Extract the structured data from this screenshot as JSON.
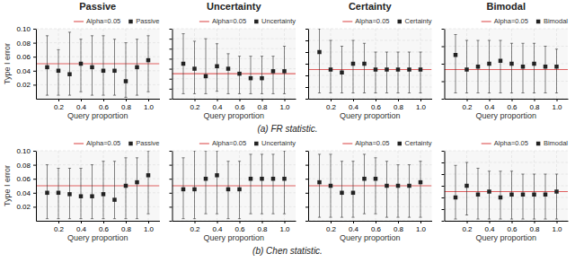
{
  "chart_data": [
    {
      "type": "scatter",
      "title": "Passive",
      "xlabel": "Query proportion",
      "ylabel": "Type I error",
      "x": [
        0.1,
        0.2,
        0.3,
        0.4,
        0.5,
        0.6,
        0.7,
        0.8,
        0.9,
        1.0
      ],
      "xlim": [
        0.0,
        1.1
      ],
      "xticks": [
        0.2,
        0.4,
        0.6,
        0.8,
        {
          "value": 1.0,
          "label": "1.0"
        }
      ],
      "ylim": [
        0.0,
        0.1
      ],
      "yticks": [
        0.02,
        0.04,
        0.06,
        0.08,
        {
          "value": 0.1,
          "label": "0.10"
        }
      ],
      "grid": true,
      "legend": "upper right",
      "reference_line": {
        "name": "Alpha=0.05",
        "value": 0.05,
        "color": "#e06060"
      },
      "series": [
        {
          "name": "Passive",
          "color": "#222222",
          "marker": "square",
          "values": [
            0.045,
            0.04,
            0.035,
            0.05,
            0.045,
            0.04,
            0.04,
            0.025,
            0.045,
            0.055
          ],
          "lo": [
            0.005,
            0.005,
            0.005,
            0.01,
            0.005,
            0.005,
            0.005,
            0.002,
            0.005,
            0.01
          ],
          "hi": [
            0.09,
            0.07,
            0.095,
            0.085,
            0.09,
            0.09,
            0.085,
            0.08,
            0.085,
            0.09
          ]
        }
      ]
    },
    {
      "type": "scatter",
      "title": "Uncertainty",
      "xlabel": "Query proportion",
      "x": [
        0.1,
        0.2,
        0.3,
        0.4,
        0.5,
        0.6,
        0.7,
        0.8,
        0.9,
        1.0
      ],
      "xlim": [
        0.0,
        1.1
      ],
      "xticks": [
        0.2,
        0.4,
        0.6,
        0.8,
        {
          "value": 1.0,
          "label": "1.0"
        }
      ],
      "ylim": [
        0.0,
        0.14
      ],
      "yticks": [
        0.0,
        0.02,
        0.04,
        0.06,
        0.08,
        0.1,
        0.12,
        0.14
      ],
      "tick_labels": "x",
      "grid": true,
      "legend": "upper right",
      "reference_line": {
        "name": "Alpha=0.05",
        "value": 0.05,
        "color": "#e06060"
      },
      "series": [
        {
          "name": "Uncertainty",
          "color": "#222222",
          "marker": "square",
          "values": [
            0.07,
            0.06,
            0.045,
            0.065,
            0.06,
            0.05,
            0.041,
            0.041,
            0.055,
            0.055
          ],
          "lo": [
            0.01,
            0.01,
            0.01,
            0.015,
            0.01,
            0.01,
            0.01,
            0.01,
            0.01,
            0.01
          ],
          "hi": [
            0.13,
            0.115,
            0.12,
            0.11,
            0.09,
            0.085,
            0.085,
            0.085,
            0.085,
            0.105
          ]
        }
      ]
    },
    {
      "type": "scatter",
      "title": "Certainty",
      "xlabel": "Query proportion",
      "x": [
        0.1,
        0.2,
        0.3,
        0.4,
        0.5,
        0.6,
        0.7,
        0.8,
        0.9,
        1.0
      ],
      "xlim": [
        0.0,
        1.1
      ],
      "xticks": [
        0.2,
        0.4,
        0.6,
        0.8,
        {
          "value": 1.0,
          "label": "1.0"
        }
      ],
      "ylim": [
        0.0,
        0.12
      ],
      "yticks": [
        0.0,
        0.02,
        0.04,
        0.06,
        0.08,
        0.1,
        0.12
      ],
      "tick_labels": "x",
      "grid": true,
      "legend": "upper right",
      "reference_line": {
        "name": "Alpha=0.05",
        "value": 0.05,
        "color": "#e06060"
      },
      "series": [
        {
          "name": "Certainty",
          "color": "#222222",
          "marker": "square",
          "values": [
            0.08,
            0.05,
            0.045,
            0.06,
            0.06,
            0.05,
            0.05,
            0.05,
            0.05,
            0.05
          ],
          "lo": [
            0.01,
            0.01,
            0.01,
            0.01,
            0.01,
            0.01,
            0.01,
            0.01,
            0.01,
            0.01
          ],
          "hi": [
            0.12,
            0.1,
            0.09,
            0.1,
            0.095,
            0.08,
            0.08,
            0.08,
            0.08,
            0.08
          ]
        }
      ]
    },
    {
      "type": "scatter",
      "title": "Bimodal",
      "xlabel": "Query proportion",
      "x": [
        0.1,
        0.2,
        0.3,
        0.4,
        0.5,
        0.6,
        0.7,
        0.8,
        0.9,
        1.0
      ],
      "xlim": [
        0.0,
        1.1
      ],
      "xticks": [
        0.2,
        0.4,
        0.6,
        0.8,
        {
          "value": 1.0,
          "label": "1.0"
        }
      ],
      "ylim": [
        0.0,
        0.12
      ],
      "yticks": [
        0.0,
        0.03,
        0.06,
        0.09,
        0.12
      ],
      "tick_labels": "x",
      "grid": true,
      "legend": "upper right",
      "reference_line": {
        "name": "Alpha=0.05",
        "value": 0.05,
        "color": "#e06060"
      },
      "series": [
        {
          "name": "Bimodal",
          "color": "#222222",
          "marker": "square",
          "values": [
            0.075,
            0.05,
            0.055,
            0.06,
            0.065,
            0.06,
            0.055,
            0.06,
            0.055,
            0.055
          ],
          "lo": [
            0.01,
            0.01,
            0.01,
            0.01,
            0.01,
            0.01,
            0.01,
            0.01,
            0.01,
            0.01
          ],
          "hi": [
            0.11,
            0.1,
            0.1,
            0.1,
            0.1,
            0.095,
            0.095,
            0.095,
            0.09,
            0.085
          ]
        }
      ]
    },
    {
      "type": "scatter",
      "xlabel": "Query proportion",
      "ylabel": "Type I error",
      "x": [
        0.1,
        0.2,
        0.3,
        0.4,
        0.5,
        0.6,
        0.7,
        0.8,
        0.9,
        1.0
      ],
      "xlim": [
        0.0,
        1.1
      ],
      "xticks": [
        0.2,
        0.4,
        0.6,
        0.8,
        {
          "value": 1.0,
          "label": "1.0"
        }
      ],
      "ylim": [
        0.0,
        0.1
      ],
      "yticks": [
        0.02,
        0.04,
        0.06,
        0.08,
        {
          "value": 0.1,
          "label": "0.10"
        }
      ],
      "grid": true,
      "legend": "upper right",
      "reference_line": {
        "name": "Alpha=0.05",
        "value": 0.05,
        "color": "#e06060"
      },
      "series": [
        {
          "name": "Passive",
          "color": "#222222",
          "marker": "square",
          "values": [
            0.04,
            0.04,
            0.038,
            0.035,
            0.035,
            0.038,
            0.03,
            0.05,
            0.055,
            0.065
          ],
          "lo": [
            0.003,
            0.003,
            0.003,
            0.003,
            0.003,
            0.003,
            0.003,
            0.003,
            0.003,
            0.01
          ],
          "hi": [
            0.08,
            0.075,
            0.075,
            0.075,
            0.08,
            0.085,
            0.085,
            0.09,
            0.09,
            0.1
          ]
        }
      ]
    },
    {
      "type": "scatter",
      "xlabel": "Query proportion",
      "x": [
        0.1,
        0.2,
        0.3,
        0.4,
        0.5,
        0.6,
        0.7,
        0.8,
        0.9,
        1.0
      ],
      "xlim": [
        0.0,
        1.1
      ],
      "xticks": [
        0.2,
        0.4,
        0.6,
        0.8,
        {
          "value": 1.0,
          "label": "1.0"
        }
      ],
      "ylim": [
        0.0,
        0.1
      ],
      "yticks": [
        0.0,
        0.02,
        0.04,
        0.06,
        0.08,
        0.1
      ],
      "tick_labels": "x",
      "grid": true,
      "legend": "upper right",
      "reference_line": {
        "name": "Alpha=0.05",
        "value": 0.05,
        "color": "#e06060"
      },
      "series": [
        {
          "name": "Uncertainty",
          "color": "#222222",
          "marker": "square",
          "values": [
            0.045,
            0.045,
            0.06,
            0.065,
            0.045,
            0.045,
            0.06,
            0.06,
            0.06,
            0.06
          ],
          "lo": [
            0.003,
            0.003,
            0.01,
            0.01,
            0.003,
            0.003,
            0.01,
            0.01,
            0.01,
            0.01
          ],
          "hi": [
            0.09,
            0.1,
            0.1,
            0.1,
            0.085,
            0.085,
            0.095,
            0.095,
            0.095,
            0.1
          ]
        }
      ]
    },
    {
      "type": "scatter",
      "xlabel": "Query proportion",
      "x": [
        0.1,
        0.2,
        0.3,
        0.4,
        0.5,
        0.6,
        0.7,
        0.8,
        0.9,
        1.0
      ],
      "xlim": [
        0.0,
        1.1
      ],
      "xticks": [
        0.2,
        0.4,
        0.6,
        0.8,
        {
          "value": 1.0,
          "label": "1.0"
        }
      ],
      "ylim": [
        0.0,
        0.1
      ],
      "yticks": [
        0.0,
        0.02,
        0.04,
        0.06,
        0.08,
        0.1
      ],
      "tick_labels": "x",
      "grid": true,
      "legend": "upper right",
      "reference_line": {
        "name": "Alpha=0.05",
        "value": 0.05,
        "color": "#e06060"
      },
      "series": [
        {
          "name": "Certainty",
          "color": "#222222",
          "marker": "square",
          "values": [
            0.055,
            0.05,
            0.04,
            0.04,
            0.06,
            0.06,
            0.05,
            0.05,
            0.05,
            0.055
          ],
          "lo": [
            0.005,
            0.005,
            0.005,
            0.005,
            0.01,
            0.01,
            0.005,
            0.005,
            0.005,
            0.005
          ],
          "hi": [
            0.095,
            0.095,
            0.085,
            0.085,
            0.095,
            0.09,
            0.085,
            0.08,
            0.08,
            0.085
          ]
        }
      ]
    },
    {
      "type": "scatter",
      "xlabel": "Query proportion",
      "x": [
        0.1,
        0.2,
        0.3,
        0.4,
        0.5,
        0.6,
        0.7,
        0.8,
        0.9,
        1.0
      ],
      "xlim": [
        0.0,
        1.1
      ],
      "xticks": [
        0.2,
        0.4,
        0.6,
        0.8,
        {
          "value": 1.0,
          "label": "1.0"
        }
      ],
      "ylim": [
        0.0,
        0.12
      ],
      "yticks": [
        0.0,
        0.02,
        0.04,
        0.06,
        0.08,
        0.1,
        0.12
      ],
      "tick_labels": "x",
      "grid": true,
      "legend": "upper right",
      "reference_line": {
        "name": "Alpha=0.05",
        "value": 0.05,
        "color": "#e06060"
      },
      "series": [
        {
          "name": "Bimodal",
          "color": "#222222",
          "marker": "square",
          "values": [
            0.04,
            0.06,
            0.045,
            0.05,
            0.04,
            0.045,
            0.045,
            0.045,
            0.045,
            0.05
          ],
          "lo": [
            0.003,
            0.01,
            0.003,
            0.003,
            0.003,
            0.003,
            0.003,
            0.003,
            0.003,
            0.003
          ],
          "hi": [
            0.095,
            0.1,
            0.09,
            0.085,
            0.085,
            0.085,
            0.08,
            0.08,
            0.08,
            0.08
          ]
        }
      ]
    }
  ],
  "captions": [
    "(a) FR statistic.",
    "(b) Chen statistic."
  ]
}
